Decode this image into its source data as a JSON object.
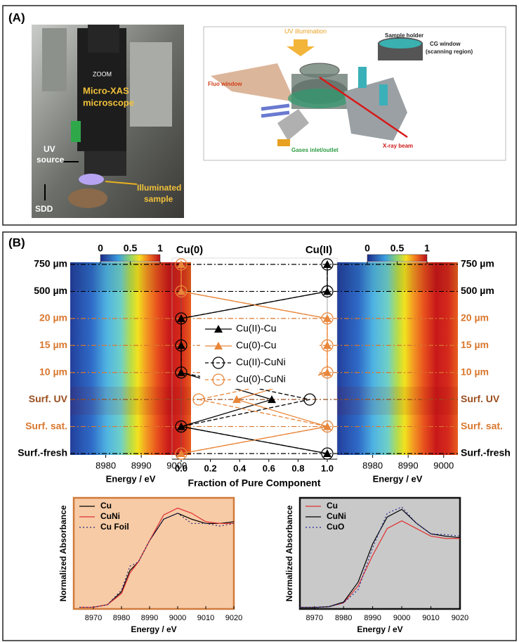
{
  "panel_a": {
    "label": "(A)",
    "photo_labels": [
      "ZOOM",
      "Micro-XAS",
      "microscope",
      "UV",
      "source",
      "SDD",
      "Illuminated",
      "sample"
    ],
    "diagram_labels": [
      "UV illumination",
      "Sample holder",
      "CG window",
      "(scanning region)",
      "Fluo window",
      "Gases inlet/outlet",
      "X-ray beam"
    ]
  },
  "panel_b": {
    "label": "(B)"
  },
  "chart_data": [
    {
      "type": "heatmap",
      "xlabel": "Energy / eV",
      "xlim": [
        8970,
        9004
      ],
      "xticks": [
        8980,
        8990,
        9000
      ],
      "colorbar_lim": [
        0,
        1
      ],
      "colorbar_ticks": [
        0,
        0.5,
        1
      ]
    },
    {
      "type": "heatmap",
      "xlabel": "Energy / eV",
      "xlim": [
        8970,
        9004
      ],
      "xticks": [
        8980,
        8990,
        9000
      ],
      "colorbar_lim": [
        0,
        1
      ],
      "colorbar_ticks": [
        0,
        0.5,
        1
      ]
    },
    {
      "type": "profile",
      "left_title": "Cu(0)",
      "right_title": "Cu(II)",
      "xlabel": "Fraction of Pure Component",
      "categories": [
        "750 µm",
        "500 µm",
        "20 µm",
        "15 µm",
        "10 µm",
        "Surf. UV",
        "Surf. sat.",
        "Surf.-fresh"
      ],
      "category_colors": [
        "#000000",
        "#000000",
        "#d9772e",
        "#d9772e",
        "#d9772e",
        "#9a4d1c",
        "#d9772e",
        "#000000"
      ],
      "xlim": [
        0,
        1
      ],
      "xticks": [
        {
          "value": 0,
          "label": "0.0"
        },
        0.2,
        0.4,
        0.6,
        0.8,
        {
          "value": 1,
          "label": "1.0"
        }
      ],
      "series": [
        {
          "name": "Cu(II)-Cu",
          "color": "#000000",
          "marker": "triangle",
          "dashed": false,
          "values": [
            1,
            1,
            0,
            0,
            0,
            0.62,
            0,
            1
          ]
        },
        {
          "name": "Cu(0)-Cu",
          "color": "#e8863a",
          "marker": "triangle",
          "dashed": false,
          "values": [
            0,
            0,
            1,
            1,
            1,
            0.38,
            1,
            0
          ]
        },
        {
          "name": "Cu(II)-CuNi",
          "color": "#000000",
          "marker": "circle",
          "dashed": true,
          "values": [
            1,
            1,
            0,
            0,
            0,
            0.88,
            0,
            1
          ]
        },
        {
          "name": "Cu(0)-CuNi",
          "color": "#e8863a",
          "marker": "circle",
          "dashed": true,
          "values": [
            0,
            0,
            1,
            1,
            1,
            0.12,
            1,
            0
          ]
        }
      ]
    },
    {
      "type": "line",
      "xlabel": "Energy / eV",
      "ylabel": "Normalized Absorbance",
      "background": "#f7cba6",
      "border": "#d07a3a",
      "x": [
        8965,
        8970,
        8975,
        8980,
        8983,
        8986,
        8990,
        8995,
        9000,
        9005,
        9010,
        9015,
        9020
      ],
      "xlim": [
        8963,
        9020
      ],
      "xticks": [
        8970,
        8980,
        8990,
        9000,
        9010,
        9020
      ],
      "ylim": [
        0,
        1.3
      ],
      "series": [
        {
          "name": "Cu",
          "color": "#000000",
          "dashed": false,
          "values": [
            0.02,
            0.02,
            0.05,
            0.2,
            0.45,
            0.55,
            0.8,
            1.05,
            1.12,
            1.05,
            1.0,
            1.0,
            1.02
          ]
        },
        {
          "name": "CuNi",
          "color": "#e03030",
          "dashed": false,
          "values": [
            0.02,
            0.02,
            0.05,
            0.18,
            0.42,
            0.55,
            0.8,
            1.1,
            1.18,
            1.12,
            1.02,
            1.0,
            1.0
          ]
        },
        {
          "name": "Cu Foil",
          "color": "#2a2a7a",
          "dashed": true,
          "values": [
            0.02,
            0.02,
            0.05,
            0.22,
            0.5,
            0.55,
            0.8,
            1.05,
            1.12,
            1.0,
            1.0,
            0.97,
            1.0
          ]
        }
      ]
    },
    {
      "type": "line",
      "xlabel": "Energy / eV",
      "ylabel": "Normalized Absorbance",
      "background": "#c9c9c9",
      "border": "#111111",
      "x": [
        8965,
        8970,
        8975,
        8980,
        8985,
        8990,
        8995,
        9000,
        9005,
        9010,
        9015,
        9020
      ],
      "xlim": [
        8965,
        9020
      ],
      "xticks": [
        8970,
        8980,
        8990,
        9000,
        9010,
        9020
      ],
      "ylim": [
        0,
        1.45
      ],
      "series": [
        {
          "name": "Cu",
          "color": "#e03030",
          "dashed": false,
          "values": [
            0.02,
            0.02,
            0.03,
            0.08,
            0.3,
            0.7,
            1.05,
            1.15,
            1.05,
            0.95,
            0.92,
            0.92
          ]
        },
        {
          "name": "CuNi",
          "color": "#000000",
          "dashed": false,
          "values": [
            0.02,
            0.02,
            0.03,
            0.09,
            0.35,
            0.85,
            1.2,
            1.3,
            1.12,
            0.98,
            0.95,
            0.93
          ]
        },
        {
          "name": "CuO",
          "color": "#2a2a9a",
          "dashed": true,
          "values": [
            0.02,
            0.02,
            0.03,
            0.08,
            0.25,
            0.8,
            1.25,
            1.33,
            1.12,
            0.98,
            0.97,
            0.95
          ]
        }
      ]
    }
  ]
}
